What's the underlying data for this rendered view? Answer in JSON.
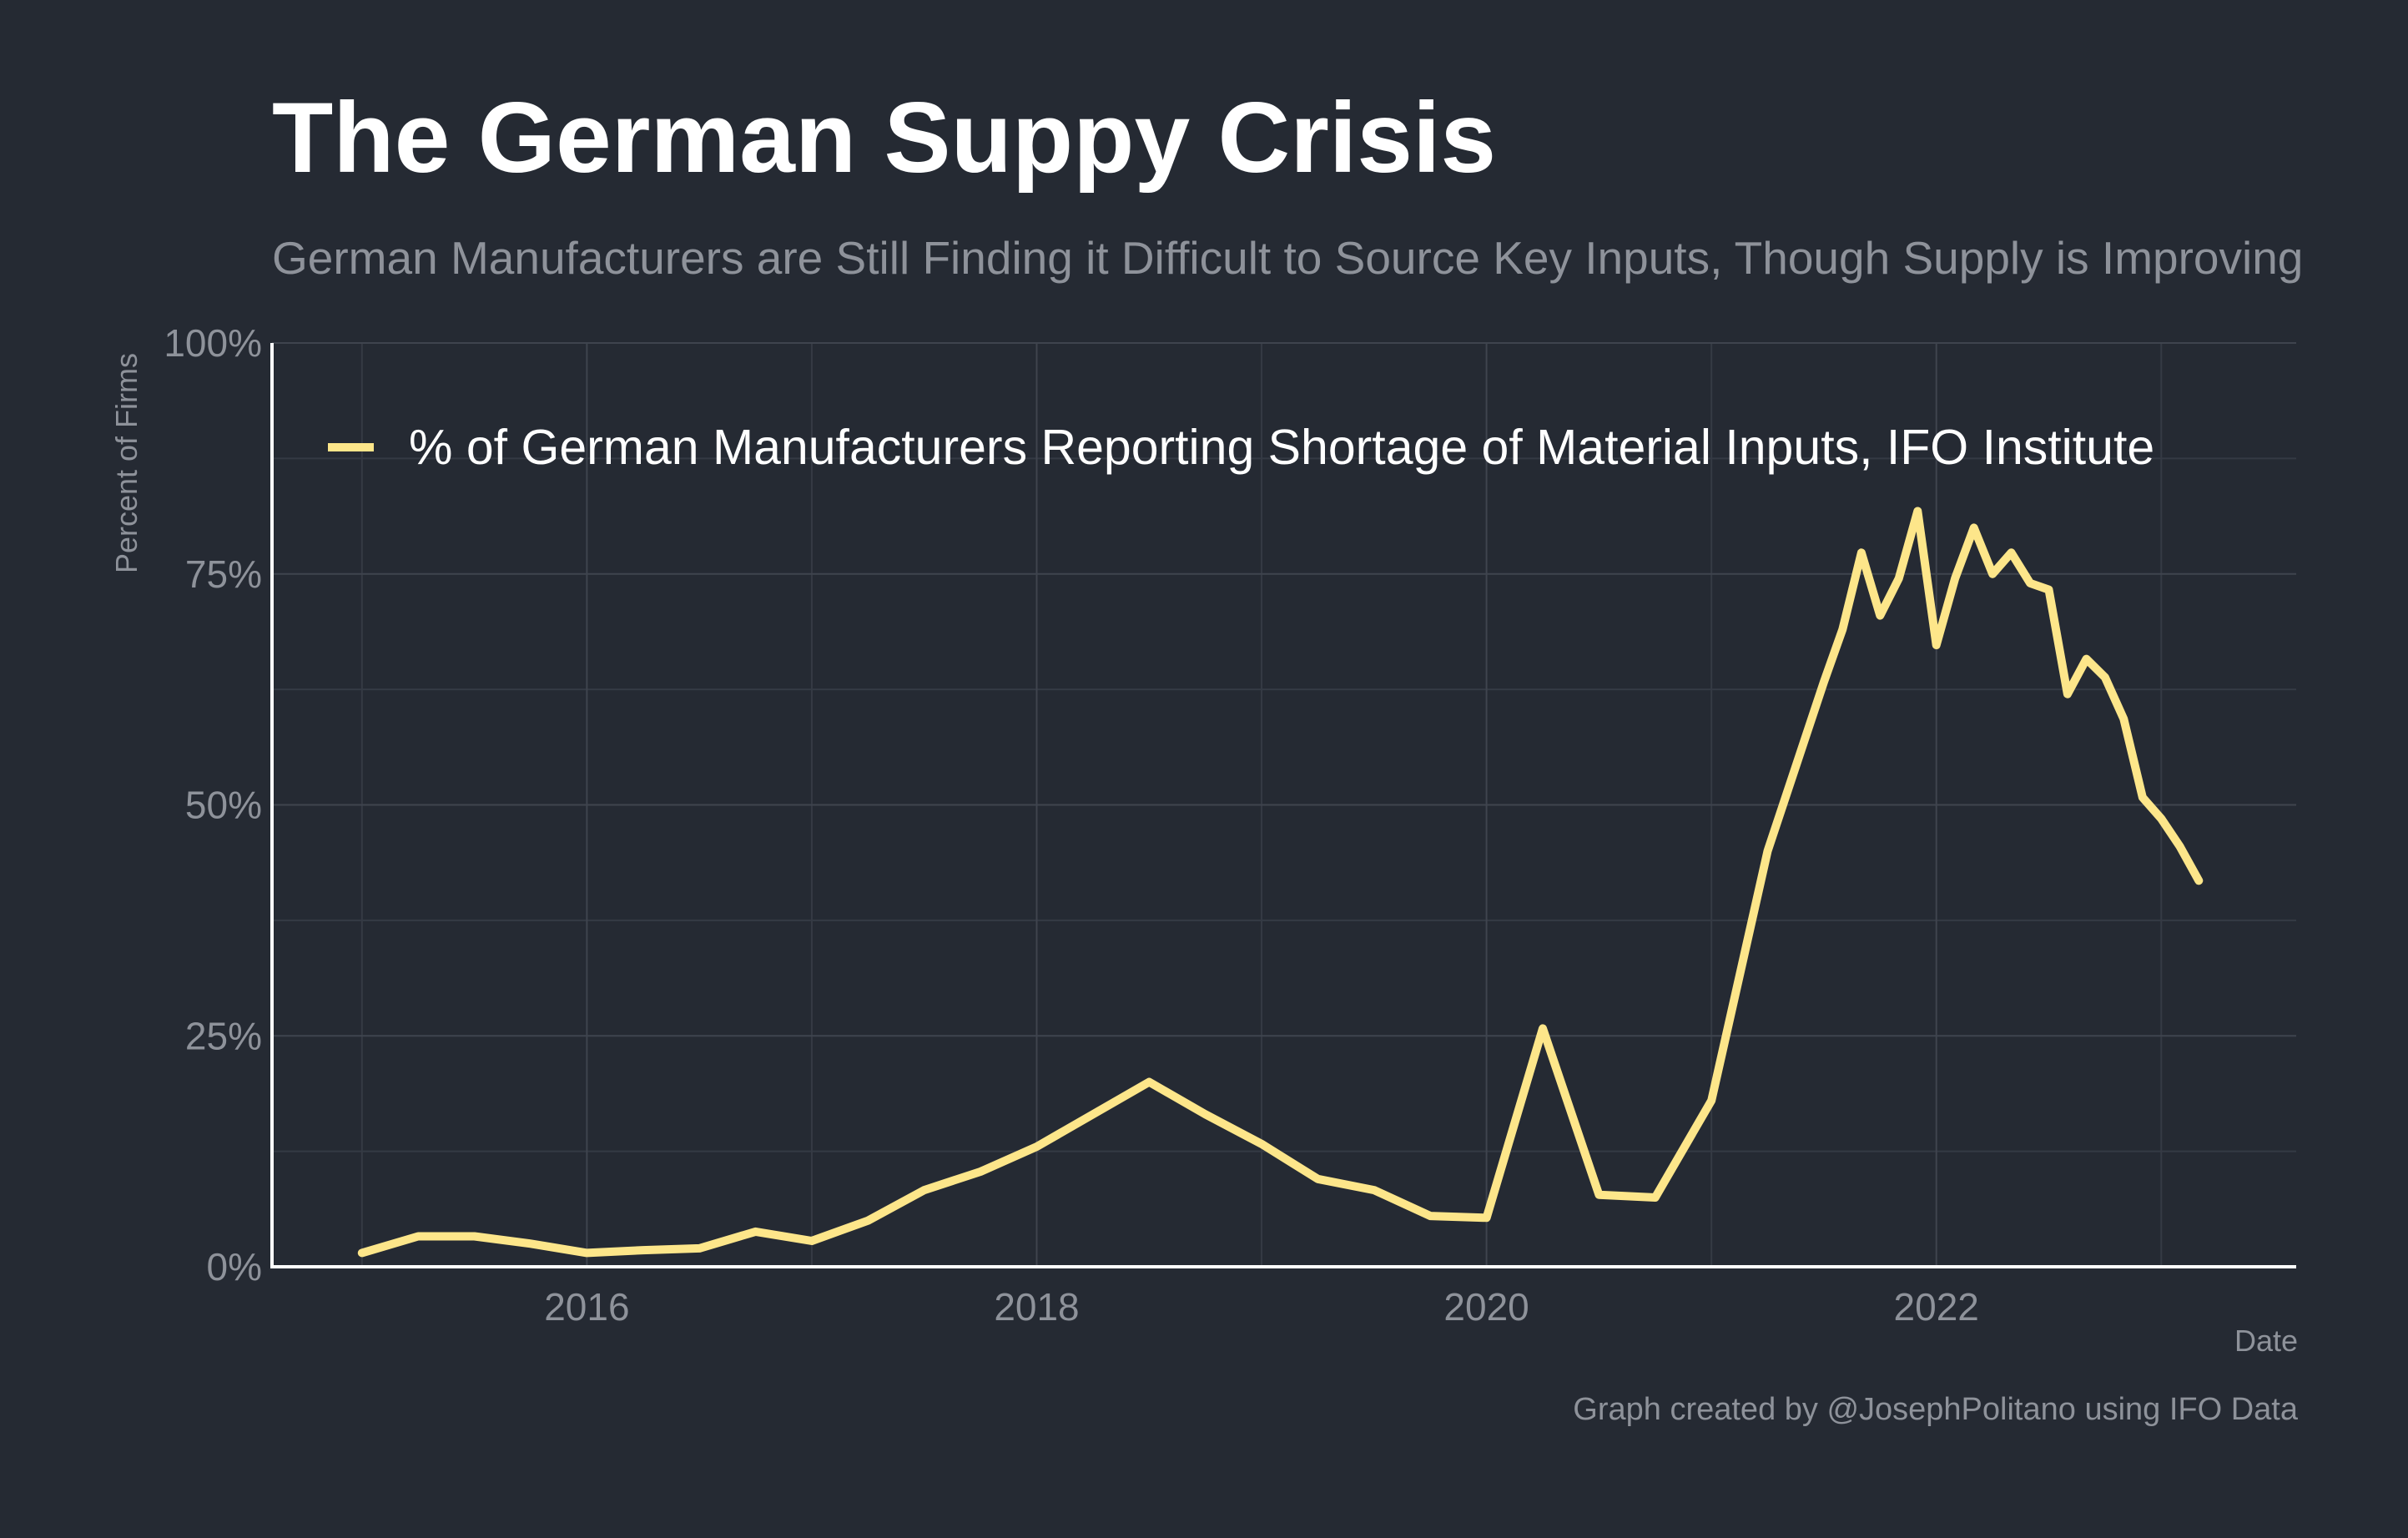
{
  "chart_data": {
    "type": "line",
    "title": "The German Suppy Crisis",
    "subtitle": "German Manufacturers are Still Finding it Difficult to Source Key Inputs, Though Supply is Improving",
    "xlabel": "Date",
    "ylabel": "Percent of Firms",
    "caption": "Graph created by @JosephPolitano using IFO Data",
    "xlim": [
      2014.6,
      2023.6
    ],
    "ylim": [
      0,
      100
    ],
    "x_ticks": [
      2016,
      2018,
      2020,
      2022
    ],
    "x_tick_labels": [
      "2016",
      "2018",
      "2020",
      "2022"
    ],
    "y_ticks": [
      0,
      25,
      50,
      75,
      100
    ],
    "y_tick_labels": [
      "0%",
      "25%",
      "50%",
      "75%",
      "100%"
    ],
    "grid": true,
    "legend_position": "top-left",
    "series": [
      {
        "name": "% of German Manufacturers Reporting Shortage of Material Inputs, IFO Institute",
        "color": "#fde68a",
        "x": [
          2015.0,
          2015.25,
          2015.5,
          2015.75,
          2016.0,
          2016.25,
          2016.5,
          2016.75,
          2017.0,
          2017.25,
          2017.5,
          2017.75,
          2018.0,
          2018.25,
          2018.5,
          2018.75,
          2019.0,
          2019.25,
          2019.5,
          2019.75,
          2020.0,
          2020.25,
          2020.5,
          2020.75,
          2021.0,
          2021.25,
          2021.5,
          2021.583,
          2021.667,
          2021.75,
          2021.833,
          2021.917,
          2022.0,
          2022.083,
          2022.167,
          2022.25,
          2022.333,
          2022.417,
          2022.5,
          2022.583,
          2022.667,
          2022.75,
          2022.833,
          2022.917,
          2023.0,
          2023.083,
          2023.167
        ],
        "values": [
          1.5,
          3.3,
          3.3,
          2.5,
          1.5,
          1.8,
          2.0,
          3.8,
          2.8,
          5.0,
          8.3,
          10.3,
          13.0,
          16.5,
          20.0,
          16.5,
          13.3,
          9.5,
          8.3,
          5.5,
          5.3,
          25.8,
          7.8,
          7.5,
          18.0,
          45.0,
          63.3,
          69.0,
          77.3,
          70.5,
          74.5,
          81.8,
          67.3,
          74.5,
          80.0,
          75.0,
          77.3,
          74.0,
          73.3,
          62.0,
          65.8,
          63.8,
          59.3,
          50.8,
          48.5,
          45.5,
          41.8
        ]
      }
    ]
  }
}
